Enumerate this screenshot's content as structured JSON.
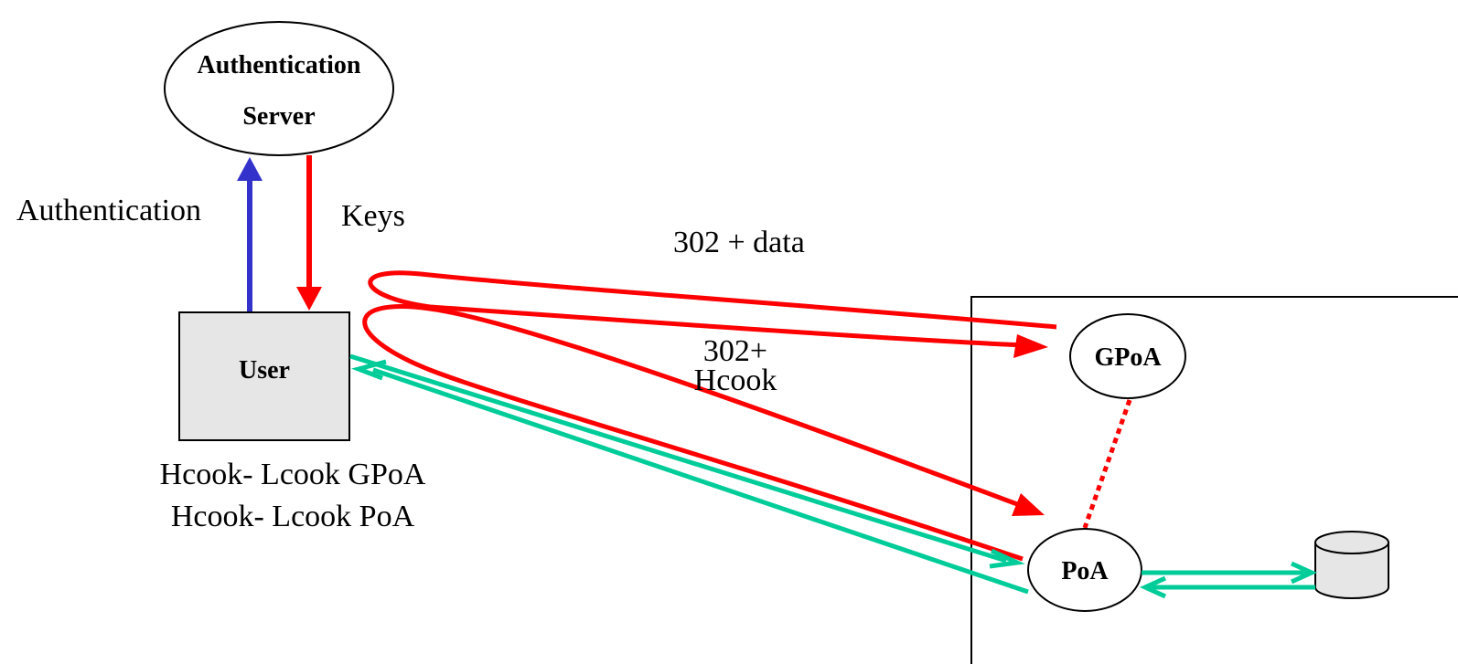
{
  "nodes": {
    "auth_server": {
      "line1": "Authentication",
      "line2": "Server"
    },
    "user": {
      "label": "User"
    },
    "gpoa": {
      "label": "GPoA"
    },
    "poa": {
      "label": "PoA"
    }
  },
  "edges": {
    "authentication": "Authentication",
    "keys": "Keys",
    "redirect_data": "302 + data",
    "redirect_hcook_line1": "302+",
    "redirect_hcook_line2": "Hcook"
  },
  "user_cookies": [
    "Hcook- Lcook GPoA",
    "Hcook- Lcook PoA"
  ],
  "colors": {
    "red": "#ff0000",
    "blue": "#3333cc",
    "green": "#00cc99",
    "box_fill": "#e6e6e6"
  }
}
